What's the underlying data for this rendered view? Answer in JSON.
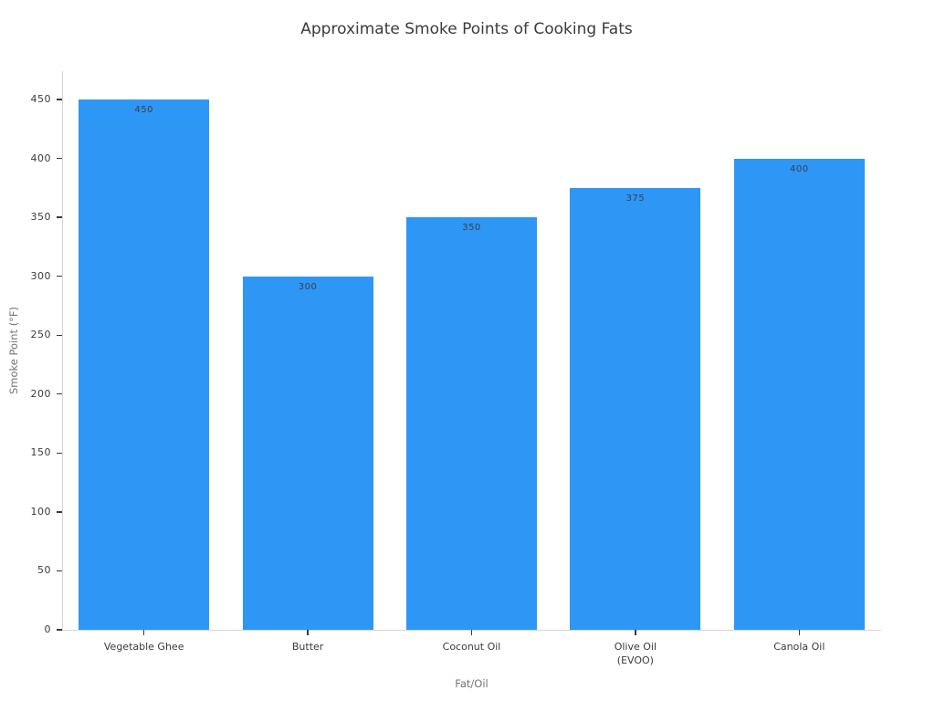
{
  "title": "Approximate Smoke Points of Cooking Fats",
  "chart_data": {
    "type": "bar",
    "title": "Approximate Smoke Points of Cooking Fats",
    "categories": [
      "Vegetable Ghee",
      "Butter",
      "Coconut Oil",
      "Olive Oil\n(EVOO)",
      "Canola Oil"
    ],
    "values": [
      450,
      300,
      350,
      375,
      400
    ],
    "bar_labels": [
      "450",
      "300",
      "350",
      "375",
      "400"
    ],
    "xlabel": "Fat/Oil",
    "ylabel": "Smoke Point (°F)",
    "ylim": [
      0,
      474
    ],
    "yticks": [
      0,
      50,
      100,
      150,
      200,
      250,
      300,
      350,
      400,
      450
    ],
    "grid": false,
    "legend": null,
    "colors": {
      "bar": "#2e96f5",
      "bar_label": "#37424a",
      "tick_label": "#3a3a3a",
      "axis_title": "#757575",
      "spine": "#d6d6d6",
      "tick_mark": "#3a3a3a",
      "background": "#ffffff"
    }
  }
}
